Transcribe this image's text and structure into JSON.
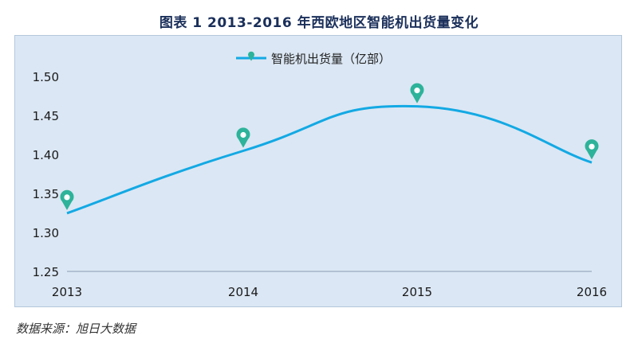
{
  "title": "图表 1    2013-2016 年西欧地区智能机出货量变化",
  "source": "数据来源：旭日大数据",
  "colors": {
    "line": "#13a9e4",
    "marker": "#2db39a",
    "panel": "#dbe7f4",
    "axis": "#8a9bb0"
  },
  "chart_data": {
    "type": "line",
    "categories": [
      "2013",
      "2014",
      "2015",
      "2016"
    ],
    "series": [
      {
        "name": "智能机出货量（亿部）",
        "values": [
          1.345,
          1.425,
          1.482,
          1.41
        ]
      }
    ],
    "ylim": [
      1.25,
      1.5
    ],
    "yticks": [
      "1.50",
      "1.45",
      "1.40",
      "1.35",
      "1.30",
      "1.25"
    ],
    "legend": "top-center",
    "grid": false,
    "smooth": true,
    "markers": "pin",
    "xlabel": "",
    "ylabel": ""
  }
}
